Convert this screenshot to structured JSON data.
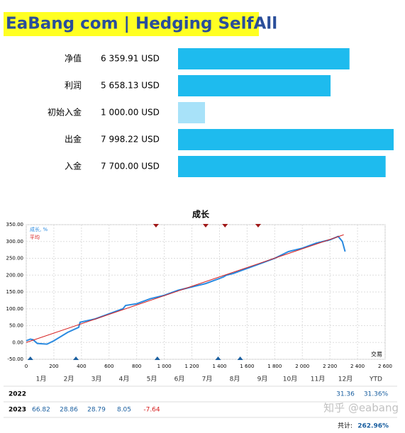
{
  "header": {
    "title": "EaBang com | Hedging SelfAll"
  },
  "chart_data": [
    {
      "type": "hbar",
      "categories": [
        "净值",
        "利润",
        "初始入金",
        "出金",
        "入金"
      ],
      "values": [
        6359.91,
        5658.13,
        1000.0,
        7998.22,
        7700.0
      ],
      "value_labels": [
        "6 359.91 USD",
        "5 658.13 USD",
        "1 000.00 USD",
        "7 998.22 USD",
        "7 700.00 USD"
      ],
      "colors": [
        "#1ebbee",
        "#1ebbee",
        "#a8e2f9",
        "#1ebbee",
        "#1ebbee"
      ]
    },
    {
      "type": "line",
      "title": "成长",
      "x_label": "交易",
      "xlim": [
        0,
        2600
      ],
      "ylim": [
        -50,
        350
      ],
      "xticks": [
        0,
        200,
        400,
        600,
        800,
        {
          "value": 1000,
          "label": "1 000"
        },
        {
          "value": 1200,
          "label": "1 200"
        },
        {
          "value": 1400,
          "label": "1 400"
        },
        {
          "value": 1600,
          "label": "1 600"
        },
        {
          "value": 1800,
          "label": "1 800"
        },
        {
          "value": 2000,
          "label": "2 000"
        },
        {
          "value": 2200,
          "label": "2 200"
        },
        {
          "value": 2400,
          "label": "2 400"
        },
        {
          "value": 2600,
          "label": "2 600"
        }
      ],
      "yticks": [
        {
          "value": -50,
          "label": "-50.00"
        },
        {
          "value": 0,
          "label": "0.00"
        },
        {
          "value": 50,
          "label": "50.00"
        },
        {
          "value": 100,
          "label": "100.00"
        },
        {
          "value": 150,
          "label": "150.00"
        },
        {
          "value": 200,
          "label": "200.00"
        },
        {
          "value": 250,
          "label": "250.00"
        },
        {
          "value": 300,
          "label": "300.00"
        },
        {
          "value": 350,
          "label": "350.00"
        }
      ],
      "grid": true,
      "series": [
        {
          "name": "成长, %",
          "color": "#2a8ae0",
          "x": [
            0,
            30,
            50,
            80,
            150,
            200,
            300,
            380,
            390,
            500,
            600,
            700,
            720,
            800,
            900,
            1000,
            1100,
            1200,
            1300,
            1400,
            1430,
            1450,
            1500,
            1600,
            1700,
            1800,
            1900,
            2000,
            2100,
            2200,
            2230,
            2260,
            2290,
            2310
          ],
          "values": [
            5,
            10,
            8,
            -3,
            -5,
            5,
            30,
            45,
            60,
            70,
            85,
            100,
            110,
            115,
            130,
            140,
            155,
            165,
            175,
            190,
            195,
            200,
            205,
            220,
            235,
            250,
            270,
            280,
            295,
            305,
            310,
            315,
            300,
            270
          ]
        },
        {
          "name": "平均",
          "color": "#d62020",
          "x": [
            0,
            2300
          ],
          "values": [
            0,
            320
          ]
        }
      ],
      "top_markers": {
        "color": "#a01818",
        "x": [
          940,
          1300,
          1440,
          1680
        ]
      },
      "bottom_markers": {
        "color": "#1a5fa0",
        "x": [
          30,
          360,
          950,
          1390,
          1550
        ]
      }
    }
  ],
  "table": {
    "columns": [
      "1月",
      "2月",
      "3月",
      "4月",
      "5月",
      "6月",
      "7月",
      "8月",
      "9月",
      "10月",
      "11月",
      "12月",
      "YTD"
    ],
    "rows": [
      [
        "2022",
        null,
        null,
        null,
        null,
        null,
        null,
        null,
        null,
        null,
        null,
        null,
        31.36,
        "31.36%"
      ],
      [
        "2023",
        66.82,
        28.86,
        28.79,
        8.05,
        -7.64,
        null,
        null,
        null,
        null,
        null,
        null,
        null,
        null
      ]
    ],
    "total_label": "共计:",
    "total": "262.96%"
  },
  "watermark": "知乎 @eabang"
}
